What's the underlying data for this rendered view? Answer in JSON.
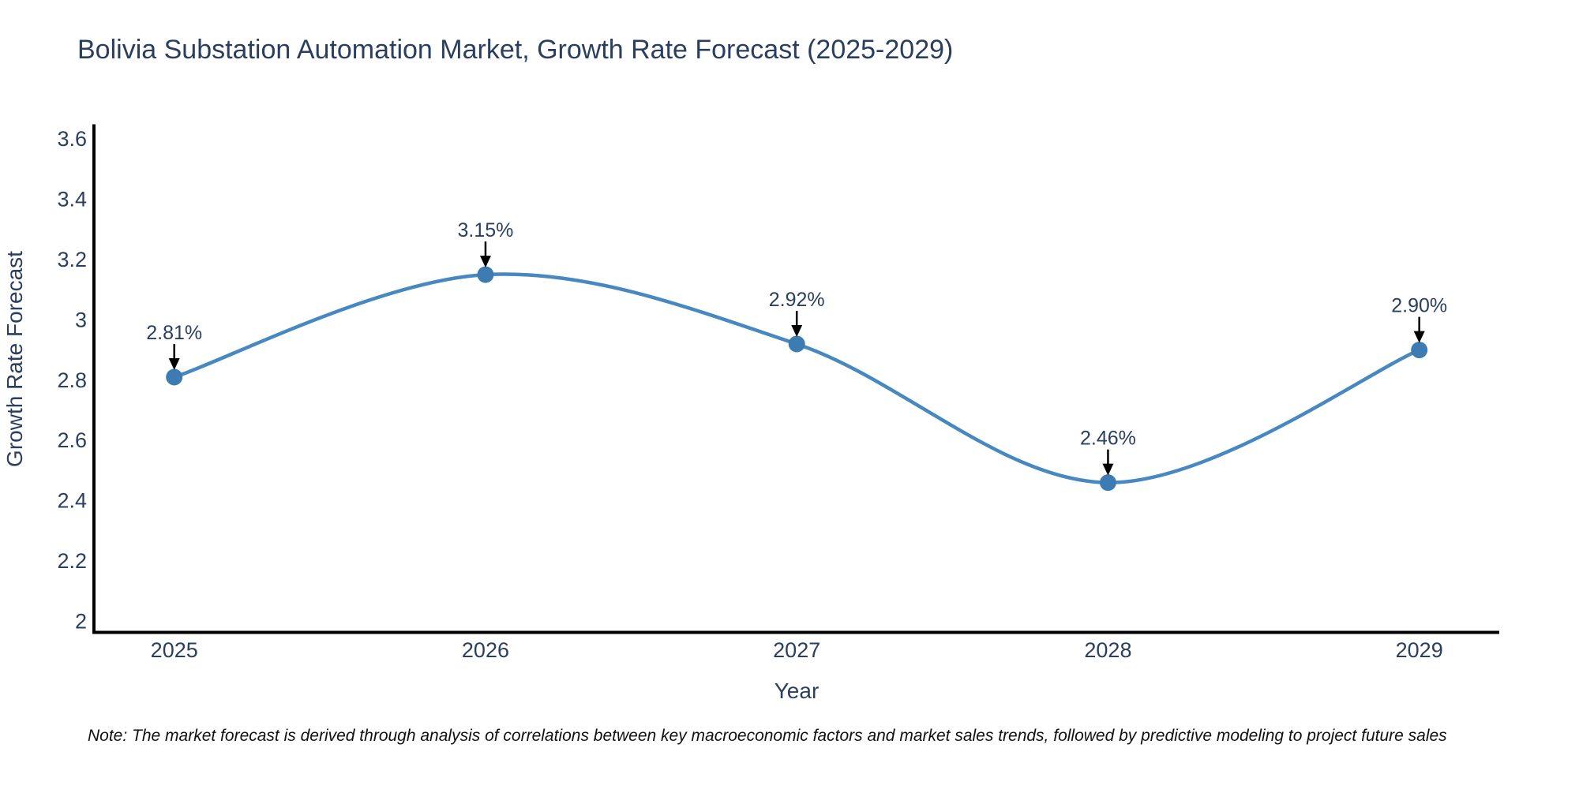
{
  "note": "Note: The market forecast is derived through analysis of correlations between key macroeconomic factors and market sales trends, followed by predictive modeling to project future sales",
  "chart_data": {
    "type": "line",
    "title": "Bolivia Substation Automation Market, Growth Rate Forecast (2025-2029)",
    "xlabel": "Year",
    "ylabel": "Growth Rate Forecast",
    "x": [
      2025,
      2026,
      2027,
      2028,
      2029
    ],
    "values": [
      2.81,
      3.15,
      2.92,
      2.46,
      2.9
    ],
    "point_labels": [
      "2.81%",
      "3.15%",
      "2.92%",
      "2.46%",
      "2.90%"
    ],
    "xtick_labels": [
      "2025",
      "2026",
      "2027",
      "2028",
      "2029"
    ],
    "ytick_values": [
      2,
      2.2,
      2.4,
      2.6,
      2.8,
      3,
      3.2,
      3.4,
      3.6
    ],
    "ytick_labels": [
      "2",
      "2.2",
      "2.4",
      "2.6",
      "2.8",
      "3",
      "3.2",
      "3.4",
      "3.6"
    ],
    "xlim": [
      2024.742,
      2029.257
    ],
    "ylim": [
      1.963,
      3.649
    ],
    "line_shape": "spline",
    "grid": false,
    "legend": "none",
    "colors": {
      "line": "#4688bf",
      "marker": "#3d7cb2",
      "axis": "#000000",
      "text": "#2a3f5f",
      "annotation_text": "#2a3f5f",
      "annotation_arrow": "#000000",
      "note_text": "#111111",
      "background": "#ffffff"
    }
  }
}
